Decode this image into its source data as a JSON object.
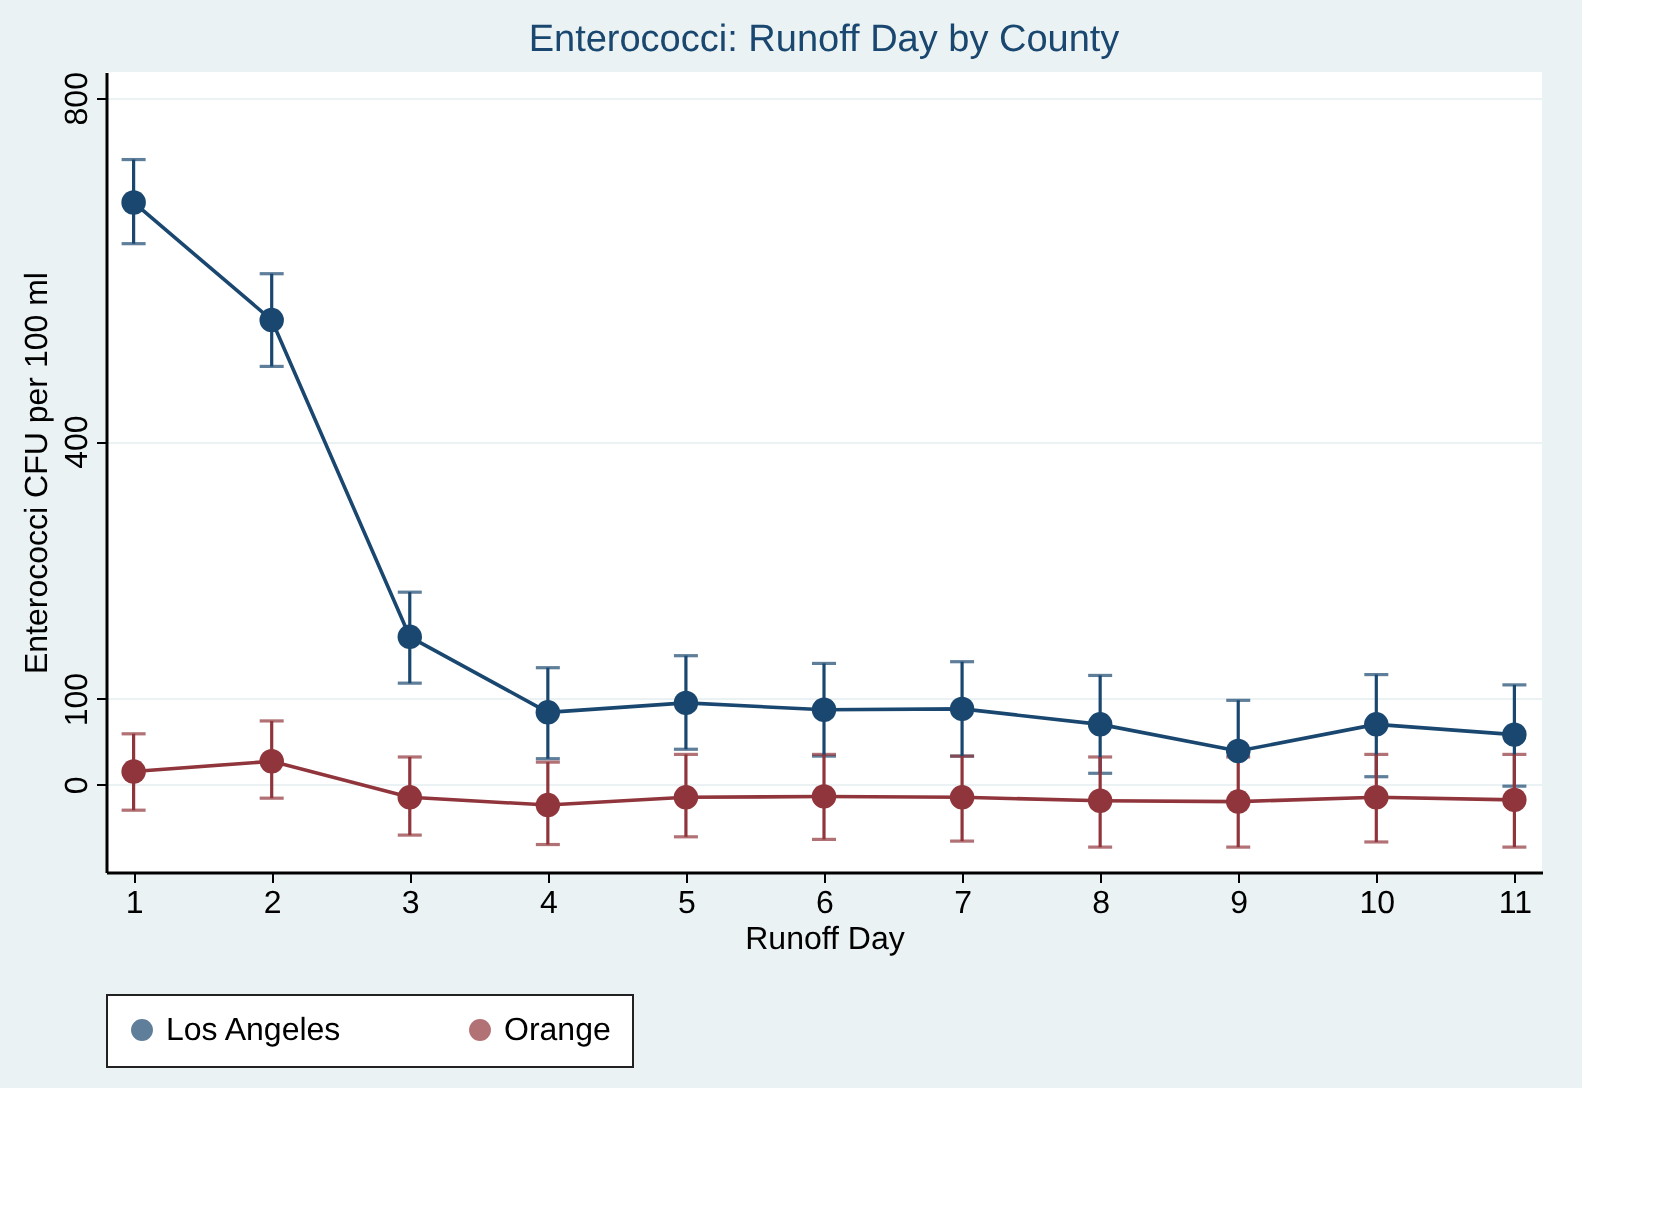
{
  "chart_data": {
    "type": "line",
    "title": "Enterococci: Runoff Day by County",
    "xlabel": "Runoff Day",
    "ylabel": "Enterococci CFU per 100 ml",
    "x": [
      1,
      2,
      3,
      4,
      5,
      6,
      7,
      8,
      9,
      10,
      11
    ],
    "xlim": [
      0.8,
      11.2
    ],
    "xticks": [
      1,
      2,
      3,
      4,
      5,
      6,
      7,
      8,
      9,
      10,
      11
    ],
    "ylim": [
      -102,
      830
    ],
    "yticks": [
      0,
      100,
      400,
      800
    ],
    "grid": "y",
    "legend": "bottom",
    "marker": "circle",
    "line_style": "solid",
    "series": [
      {
        "name": "Los Angeles",
        "color": "#1a476f",
        "values": [
          678,
          541,
          172,
          84,
          95,
          87,
          88,
          70,
          39,
          70,
          58
        ],
        "errors": [
          [
            630,
            728
          ],
          [
            487,
            595
          ],
          [
            118,
            224
          ],
          [
            30,
            136
          ],
          [
            41,
            150
          ],
          [
            33,
            141
          ],
          [
            33,
            143
          ],
          [
            13,
            127
          ],
          [
            39,
            98
          ],
          [
            9,
            128
          ],
          [
            -2,
            116
          ]
        ]
      },
      {
        "name": "Orange",
        "color": "#90353b",
        "values": [
          15,
          27,
          -15,
          -24,
          -15,
          -14,
          -15,
          -19,
          -20,
          -15,
          -18
        ],
        "errors": [
          [
            -30,
            59
          ],
          [
            -16,
            74
          ],
          [
            -59,
            32
          ],
          [
            -70,
            26
          ],
          [
            -61,
            35
          ],
          [
            -64,
            35
          ],
          [
            -66,
            33
          ],
          [
            -73,
            32
          ],
          [
            -73,
            32
          ],
          [
            -67,
            35
          ],
          [
            -73,
            35
          ]
        ]
      }
    ]
  }
}
